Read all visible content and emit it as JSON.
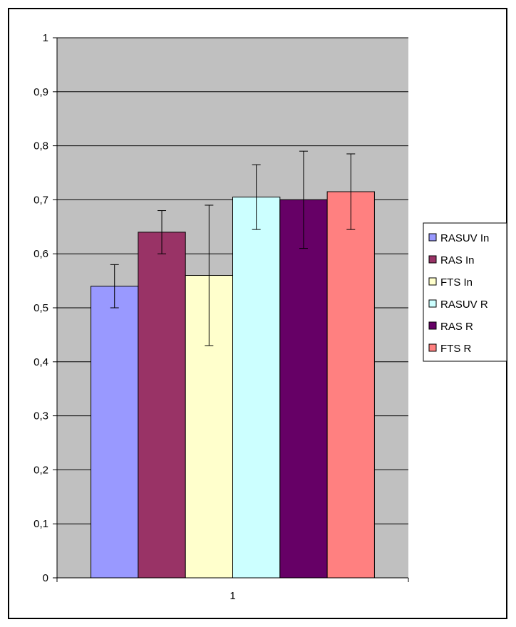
{
  "chart_data": {
    "type": "bar",
    "categories": [
      "1"
    ],
    "series": [
      {
        "name": "RASUV In",
        "values": [
          0.54
        ],
        "error": [
          0.04
        ],
        "color": "#9999ff"
      },
      {
        "name": "RAS In",
        "values": [
          0.64
        ],
        "error": [
          0.04
        ],
        "color": "#993366"
      },
      {
        "name": "FTS In",
        "values": [
          0.56
        ],
        "error": [
          0.13
        ],
        "color": "#ffffcc"
      },
      {
        "name": "RASUV R",
        "values": [
          0.705
        ],
        "error": [
          0.06
        ],
        "color": "#ccffff"
      },
      {
        "name": "RAS R",
        "values": [
          0.7
        ],
        "error": [
          0.09
        ],
        "color": "#660066"
      },
      {
        "name": "FTS R",
        "values": [
          0.715
        ],
        "error": [
          0.07
        ],
        "color": "#ff8080"
      }
    ],
    "ylim": [
      0,
      1
    ],
    "yticks": [
      "0",
      "0,1",
      "0,2",
      "0,3",
      "0,4",
      "0,5",
      "0,6",
      "0,7",
      "0,8",
      "0,9",
      "1"
    ],
    "grid": true,
    "plot_background": "#c0c0c0",
    "legend_position": "right"
  }
}
